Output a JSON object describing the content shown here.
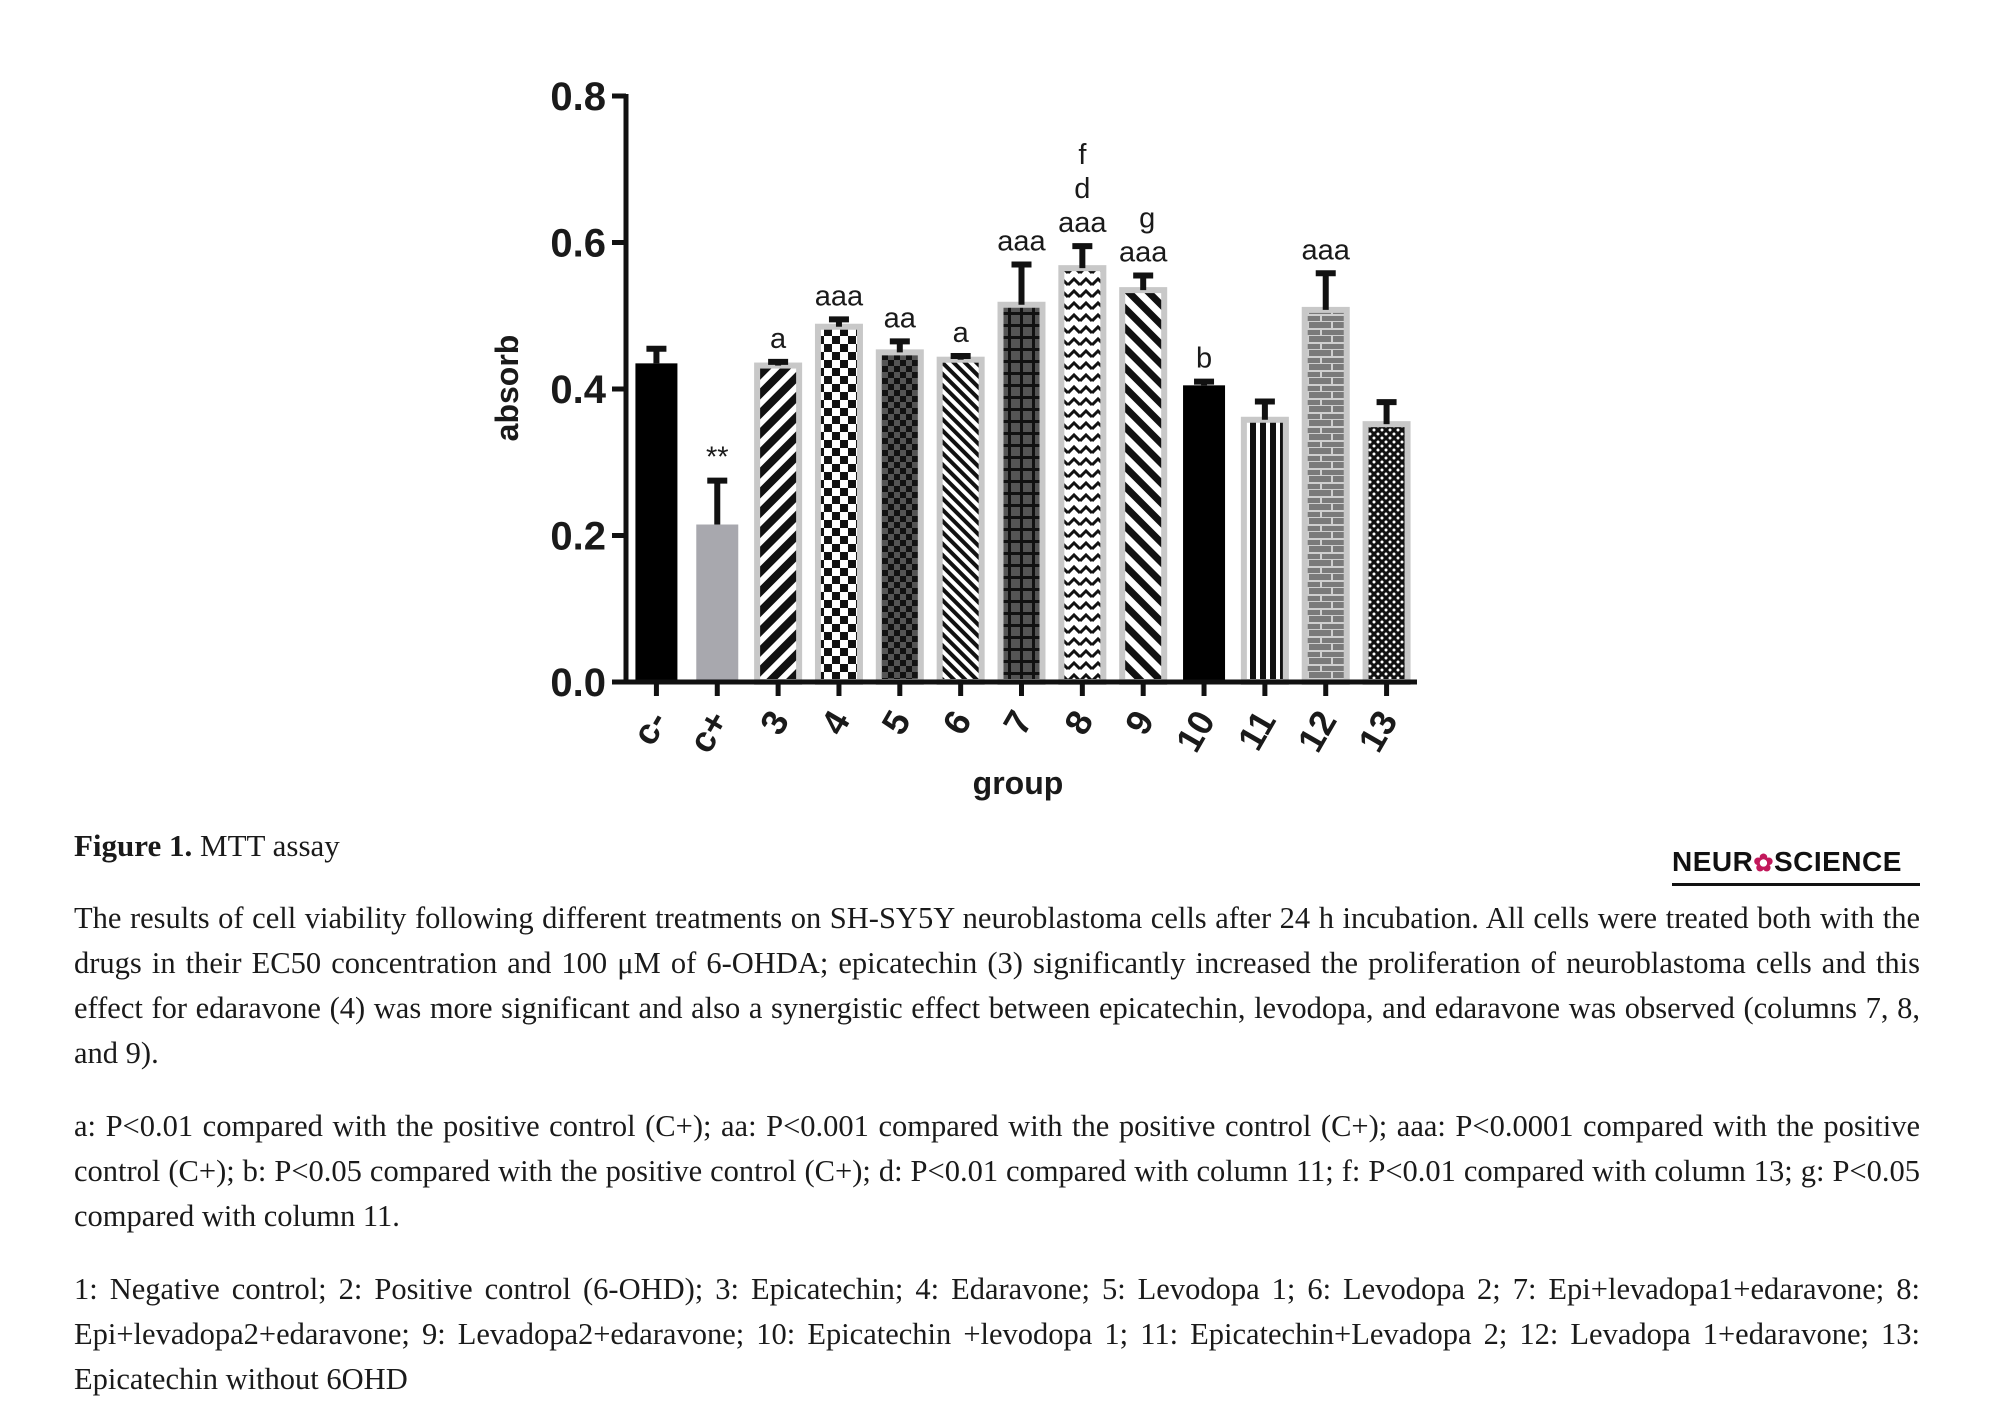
{
  "chart_data": {
    "type": "bar",
    "categories": [
      "c-",
      "c+",
      "3",
      "4",
      "5",
      "6",
      "7",
      "8",
      "9",
      "10",
      "11",
      "12",
      "13"
    ],
    "values": [
      0.435,
      0.215,
      0.432,
      0.485,
      0.45,
      0.44,
      0.515,
      0.565,
      0.535,
      0.405,
      0.358,
      0.508,
      0.352
    ],
    "errors": [
      0.02,
      0.06,
      0.005,
      0.01,
      0.015,
      0.005,
      0.055,
      0.03,
      0.02,
      0.005,
      0.025,
      0.05,
      0.03
    ],
    "annotations": [
      "",
      "**",
      "a",
      "aaa",
      "aa",
      "a",
      "aaa",
      [
        "aaa",
        "d",
        "f"
      ],
      [
        "aaa",
        "g"
      ],
      "b",
      "",
      "aaa",
      ""
    ],
    "title": "",
    "xlabel": "group",
    "ylabel": "absorb",
    "ylim": [
      0,
      0.8
    ],
    "yticks": [
      "0.0",
      "0.2",
      "0.4",
      "0.6",
      "0.8"
    ],
    "grid": false,
    "bar_styles": [
      {
        "fill": "#000000",
        "pattern": "solid"
      },
      {
        "fill": "#a8a8ae",
        "pattern": "solid"
      },
      {
        "fill": "#000000",
        "pattern": "diag-thick"
      },
      {
        "fill": "#000000",
        "pattern": "checker"
      },
      {
        "fill": "#000000",
        "pattern": "checker-small"
      },
      {
        "fill": "#000000",
        "pattern": "diag-thin"
      },
      {
        "fill": "#000000",
        "pattern": "grid"
      },
      {
        "fill": "#000000",
        "pattern": "zigzag"
      },
      {
        "fill": "#000000",
        "pattern": "diag-back"
      },
      {
        "fill": "#000000",
        "pattern": "solid"
      },
      {
        "fill": "#000000",
        "pattern": "vlines"
      },
      {
        "fill": "#7a7a7a",
        "pattern": "brick"
      },
      {
        "fill": "#000000",
        "pattern": "dots"
      }
    ]
  },
  "caption": {
    "label": "Figure 1.",
    "text": " MTT assay"
  },
  "logo": {
    "left": "NEUR",
    "right": "SCIENCE"
  },
  "paragraphs": {
    "results": "The results of cell viability following different treatments on SH-SY5Y neuroblastoma cells after 24 h incubation. All cells were treated both with the drugs in their EC50 concentration and 100 μM of 6-OHDA; epicatechin (3) significantly increased the proliferation of neuroblastoma cells and this effect for edaravone (4) was more significant and also a synergistic effect between epicatechin, levodopa, and edaravone was observed (columns 7, 8, and 9).",
    "significance": "a: P<0.01 compared with the positive control (C+); aa: P<0.001 compared with the positive control (C+); aaa: P<0.0001 compared with the positive control (C+); b: P<0.05 compared with the positive control (C+); d: P<0.01 compared with column 11; f: P<0.01 compared with column 13; g: P<0.05 compared with column 11.",
    "legend": "1: Negative control; 2: Positive control (6-OHD); 3: Epicatechin; 4: Edaravone; 5: Levodopa 1; 6: Levodopa 2; 7: Epi+levadopa1+edaravone; 8: Epi+levadopa2+edaravone; 9: Levadopa2+edaravone; 10: Epicatechin +levodopa 1; 11: Epicatechin+Levadopa 2; 12: Levadopa 1+edaravone; 13: Epicatechin without 6OHD"
  }
}
